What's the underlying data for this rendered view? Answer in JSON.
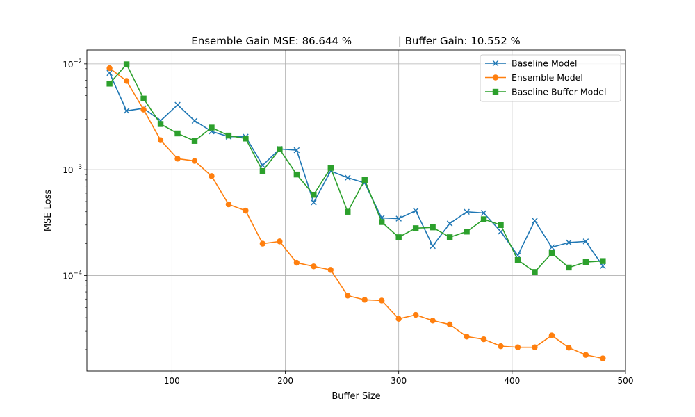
{
  "chart_data": {
    "type": "line",
    "title": "Ensemble Gain MSE: 86.644 %              | Buffer Gain: 10.552 %",
    "xlabel": "Buffer Size",
    "ylabel": "MSE Loss",
    "xlim": [
      25,
      500
    ],
    "ylim": [
      1.25e-05,
      0.0135
    ],
    "yscale": "log",
    "grid": true,
    "legend_position": "top-right",
    "x_ticks": [
      100,
      200,
      300,
      400,
      500
    ],
    "x_tick_labels": [
      "100",
      "200",
      "300",
      "400",
      "500"
    ],
    "y_ticks": [
      0.0001,
      0.001,
      0.01
    ],
    "y_tick_labels": [
      {
        "base": "10",
        "exp": "−4"
      },
      {
        "base": "10",
        "exp": "−3"
      },
      {
        "base": "10",
        "exp": "−2"
      }
    ],
    "x": [
      45,
      60,
      75,
      90,
      105,
      120,
      135,
      150,
      165,
      180,
      195,
      210,
      225,
      240,
      255,
      270,
      285,
      300,
      315,
      330,
      345,
      360,
      375,
      390,
      405,
      420,
      435,
      450,
      465,
      480
    ],
    "series": [
      {
        "name": "Baseline Model",
        "color": "#1f77b4",
        "marker": "x",
        "values": [
          0.0082,
          0.0036,
          0.0038,
          0.0029,
          0.0041,
          0.0029,
          0.0023,
          0.00205,
          0.00205,
          0.0011,
          0.00157,
          0.00153,
          0.00049,
          0.00097,
          0.00084,
          0.00075,
          0.00035,
          0.000345,
          0.00041,
          0.00019,
          0.00031,
          0.0004,
          0.00039,
          0.00026,
          0.000155,
          0.00033,
          0.000185,
          0.000205,
          0.00021,
          0.000123
        ]
      },
      {
        "name": "Ensemble Model",
        "color": "#ff7f0e",
        "marker": "o",
        "values": [
          0.0091,
          0.0069,
          0.0037,
          0.0019,
          0.00127,
          0.00121,
          0.00087,
          0.00047,
          0.00041,
          0.0002,
          0.00021,
          0.000132,
          0.000122,
          0.000113,
          6.45e-05,
          5.9e-05,
          5.8e-05,
          3.9e-05,
          4.25e-05,
          3.75e-05,
          3.45e-05,
          2.65e-05,
          2.5e-05,
          2.15e-05,
          2.1e-05,
          2.1e-05,
          2.72e-05,
          2.08e-05,
          1.78e-05,
          1.65e-05
        ]
      },
      {
        "name": "Baseline Buffer Model",
        "color": "#2ca02c",
        "marker": "s",
        "values": [
          0.0065,
          0.0099,
          0.0047,
          0.0027,
          0.0022,
          0.00187,
          0.0025,
          0.0021,
          0.00197,
          0.00097,
          0.00156,
          0.0009,
          0.00058,
          0.00104,
          0.0004,
          0.0008,
          0.00032,
          0.00023,
          0.00028,
          0.000285,
          0.00023,
          0.00026,
          0.00034,
          0.0003,
          0.00014,
          0.000108,
          0.000163,
          0.000119,
          0.000134,
          0.000137
        ]
      }
    ]
  }
}
